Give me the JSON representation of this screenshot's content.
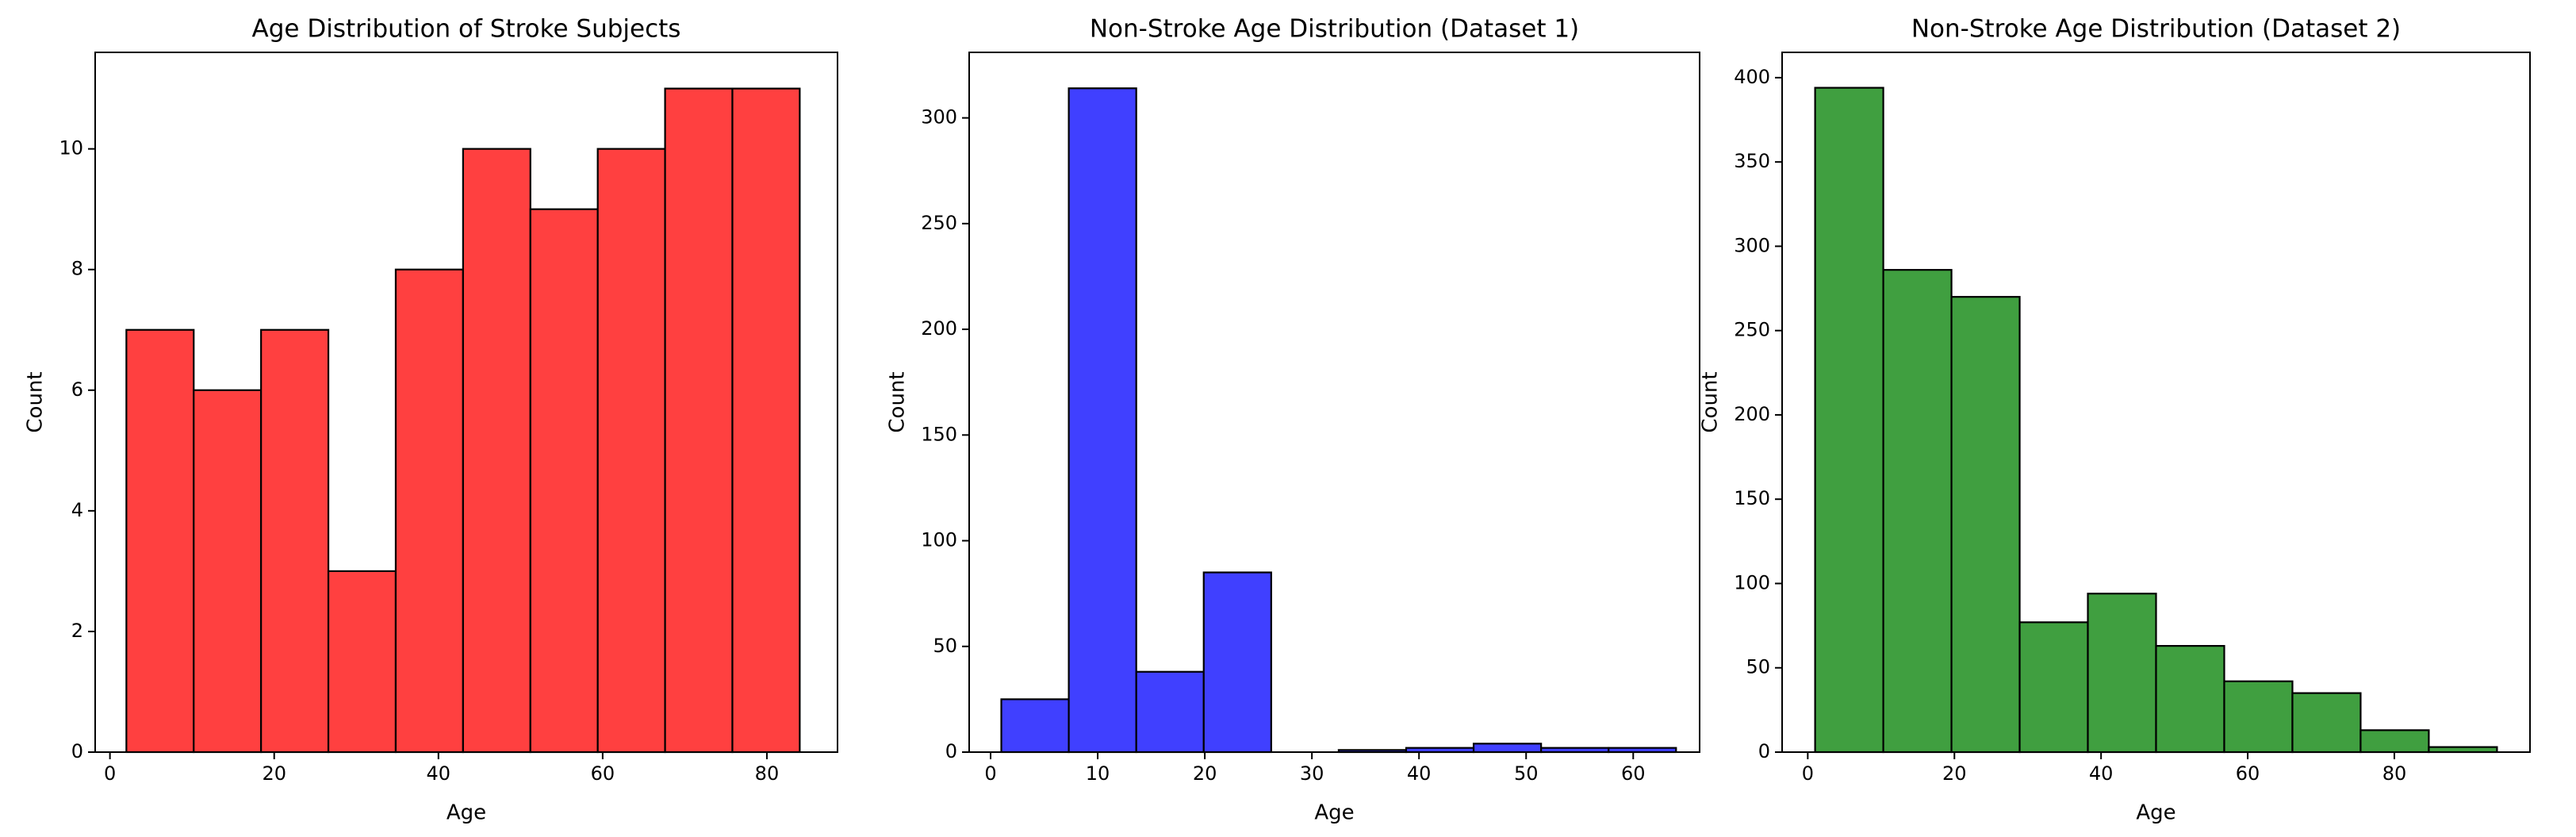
{
  "chart_data": [
    {
      "type": "histogram",
      "title": "Age Distribution of Stroke Subjects",
      "xlabel": "Age",
      "ylabel": "Count",
      "bins": [
        2,
        10.2,
        18.4,
        26.6,
        34.8,
        43,
        51.2,
        59.4,
        67.6,
        75.8,
        84
      ],
      "values": [
        7,
        6,
        7,
        3,
        8,
        10,
        9,
        10,
        11,
        11
      ],
      "color": "#ff4040",
      "xlim": [
        -1.8,
        88.6
      ],
      "ylim": [
        0,
        11.6
      ],
      "xticks": [
        0,
        20,
        40,
        60,
        80
      ],
      "yticks": [
        0,
        2,
        4,
        6,
        8,
        10
      ]
    },
    {
      "type": "histogram",
      "title": "Non-Stroke Age Distribution (Dataset 1)",
      "xlabel": "Age",
      "ylabel": "Count",
      "bins": [
        1,
        7.3,
        13.6,
        19.9,
        26.2,
        32.5,
        38.8,
        45.1,
        51.4,
        57.7,
        64
      ],
      "values": [
        25,
        314,
        38,
        85,
        0,
        1,
        2,
        4,
        2,
        2
      ],
      "color": "#4040ff",
      "xlim": [
        -2,
        66.2
      ],
      "ylim": [
        0,
        331
      ],
      "xticks": [
        0,
        10,
        20,
        30,
        40,
        50,
        60
      ],
      "yticks": [
        0,
        50,
        100,
        150,
        200,
        250,
        300
      ]
    },
    {
      "type": "histogram",
      "title": "Non-Stroke Age Distribution (Dataset 2)",
      "xlabel": "Age",
      "ylabel": "Count",
      "bins": [
        1,
        10.3,
        19.6,
        28.9,
        38.2,
        47.5,
        56.8,
        66.1,
        75.4,
        84.7,
        94
      ],
      "values": [
        394,
        286,
        270,
        77,
        94,
        63,
        42,
        35,
        13,
        3
      ],
      "color": "#409f40",
      "xlim": [
        -3.5,
        98.5
      ],
      "ylim": [
        0,
        415
      ],
      "xticks": [
        0,
        20,
        40,
        60,
        80
      ],
      "yticks": [
        0,
        50,
        100,
        150,
        200,
        250,
        300,
        350,
        400
      ]
    }
  ]
}
